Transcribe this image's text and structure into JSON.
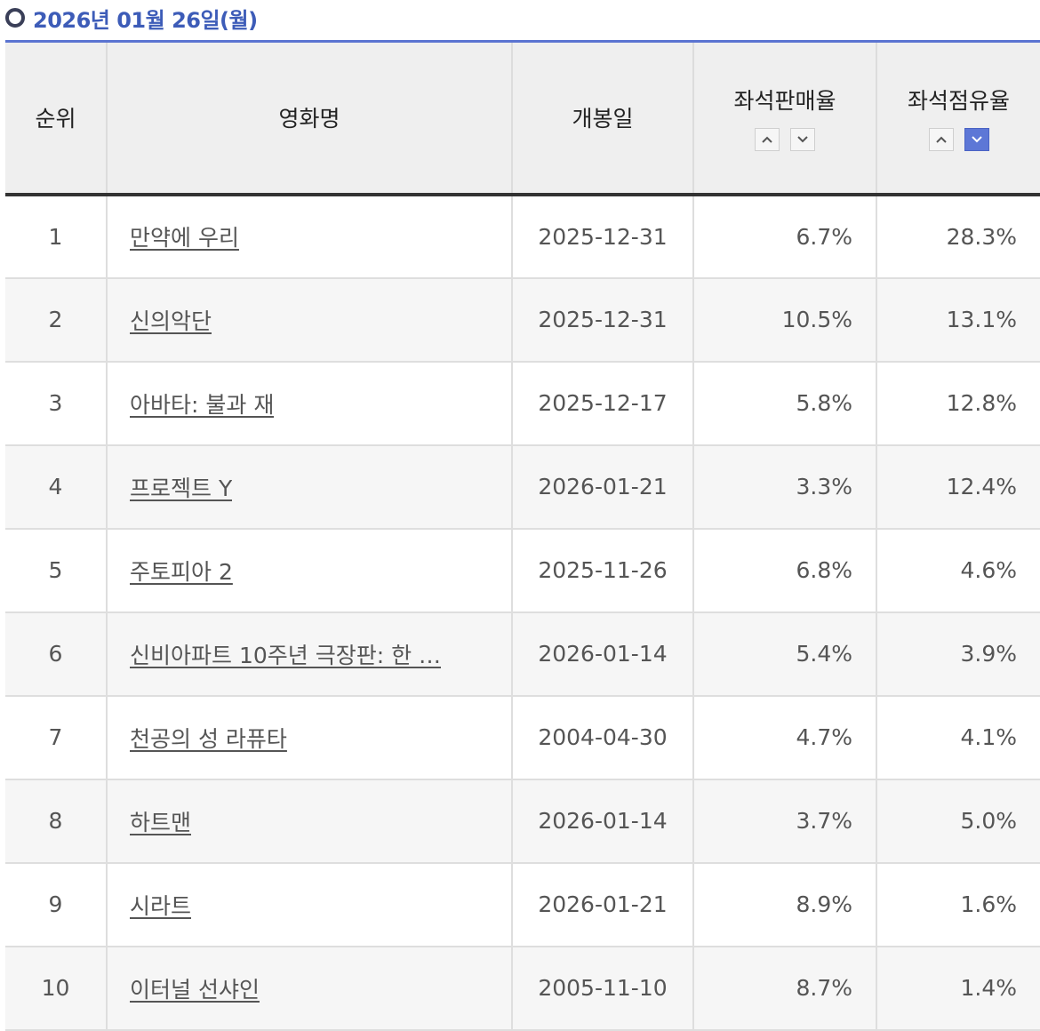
{
  "date_heading": "2026년 01월 26일(월)",
  "columns": {
    "rank": "순위",
    "title": "영화명",
    "release": "개봉일",
    "sales_rate": "좌석판매율",
    "share_rate": "좌석점유율"
  },
  "sort_icons": {
    "up": "chevron-up-icon",
    "down": "chevron-down-icon",
    "active": "share_rate_desc"
  },
  "colors": {
    "accent": "#5d77d6",
    "heading": "#3d5cb8"
  },
  "rows": [
    {
      "rank": "1",
      "title": "만약에 우리",
      "release": "2025-12-31",
      "sales_rate": "6.7%",
      "share_rate": "28.3%"
    },
    {
      "rank": "2",
      "title": "신의악단",
      "release": "2025-12-31",
      "sales_rate": "10.5%",
      "share_rate": "13.1%"
    },
    {
      "rank": "3",
      "title": "아바타: 불과 재",
      "release": "2025-12-17",
      "sales_rate": "5.8%",
      "share_rate": "12.8%"
    },
    {
      "rank": "4",
      "title": "프로젝트 Y",
      "release": "2026-01-21",
      "sales_rate": "3.3%",
      "share_rate": "12.4%"
    },
    {
      "rank": "5",
      "title": "주토피아 2",
      "release": "2025-11-26",
      "sales_rate": "6.8%",
      "share_rate": "4.6%"
    },
    {
      "rank": "6",
      "title": "신비아파트 10주년 극장판: 한 …",
      "release": "2026-01-14",
      "sales_rate": "5.4%",
      "share_rate": "3.9%"
    },
    {
      "rank": "7",
      "title": "천공의 성 라퓨타",
      "release": "2004-04-30",
      "sales_rate": "4.7%",
      "share_rate": "4.1%"
    },
    {
      "rank": "8",
      "title": "하트맨",
      "release": "2026-01-14",
      "sales_rate": "3.7%",
      "share_rate": "5.0%"
    },
    {
      "rank": "9",
      "title": "시라트",
      "release": "2026-01-21",
      "sales_rate": "8.9%",
      "share_rate": "1.6%"
    },
    {
      "rank": "10",
      "title": "이터널 선샤인",
      "release": "2005-11-10",
      "sales_rate": "8.7%",
      "share_rate": "1.4%"
    }
  ]
}
